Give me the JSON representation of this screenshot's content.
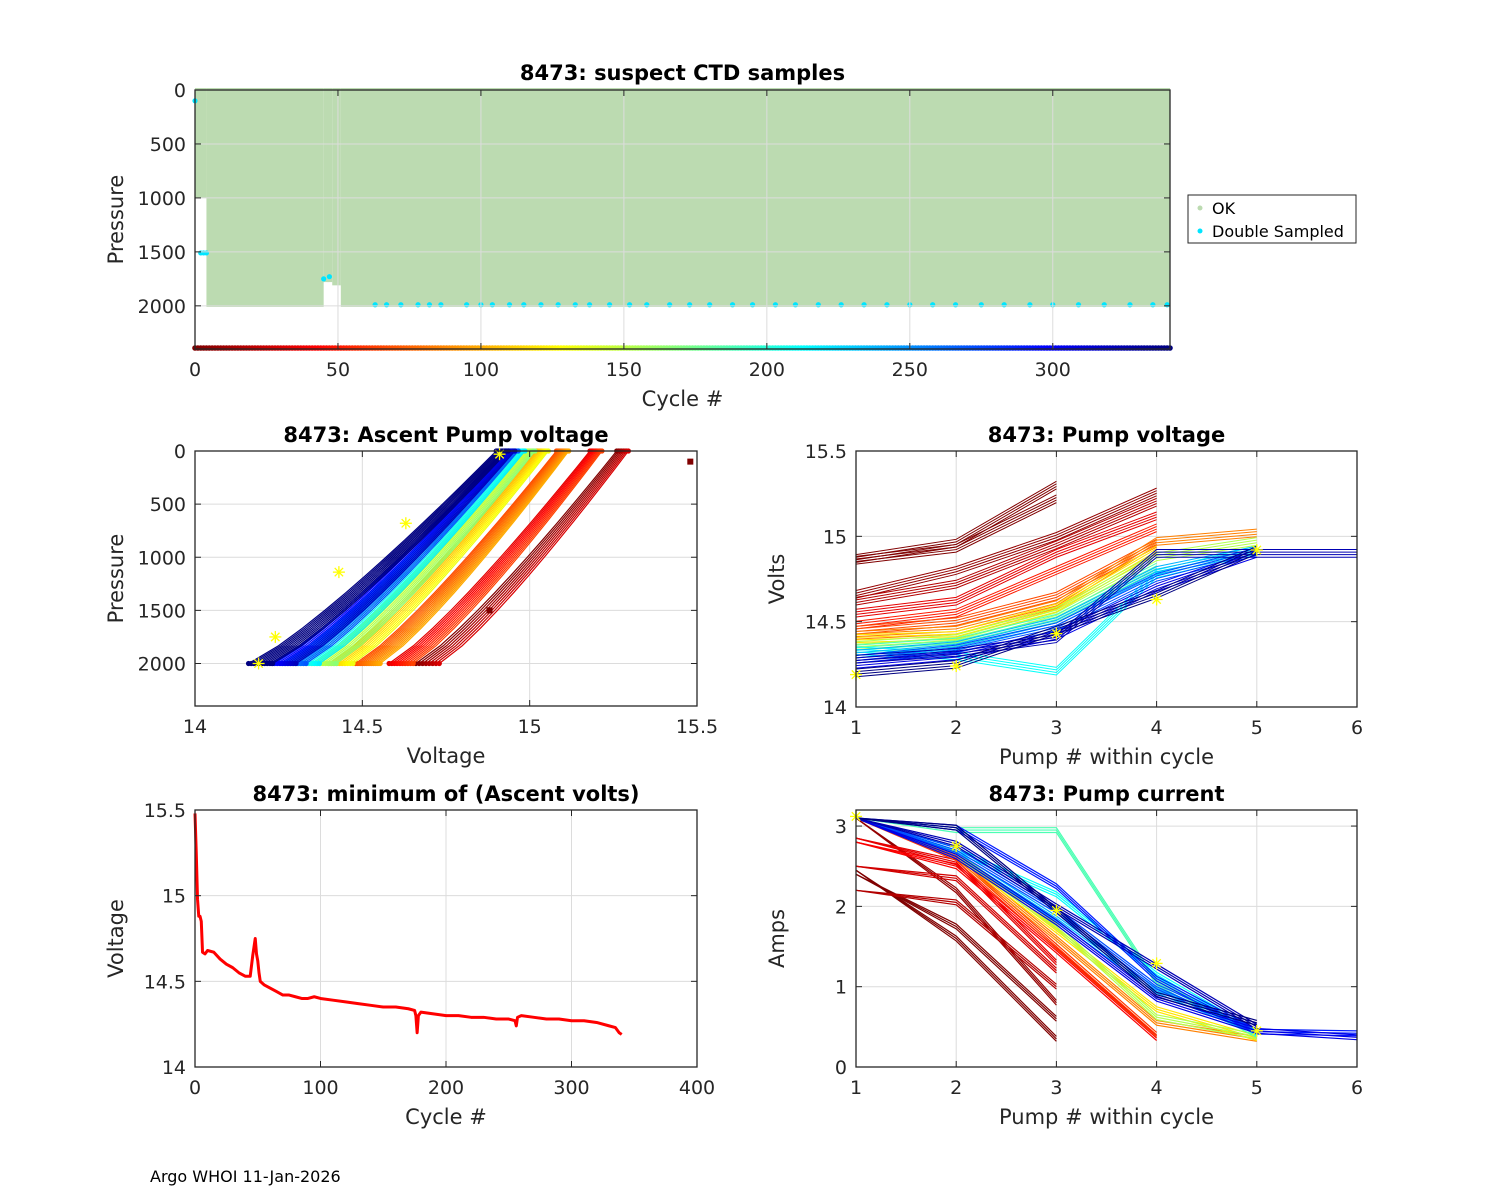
{
  "footer": "Argo WHOI 11-Jan-2026",
  "chart_data": [
    {
      "id": "suspect",
      "type": "scatter",
      "title": "8473: suspect CTD samples",
      "xlabel": "Cycle #",
      "ylabel": "Pressure",
      "xlim": [
        0,
        341
      ],
      "ylim": [
        0,
        2400
      ],
      "y_reversed": true,
      "xticks": [
        0,
        50,
        100,
        150,
        200,
        250,
        300
      ],
      "yticks": [
        0,
        500,
        1000,
        1500,
        2000
      ],
      "grid": true,
      "legend": {
        "placement": "outside-right",
        "entries": [
          {
            "label": "OK",
            "color": "#bcdbb1"
          },
          {
            "label": "Double Sampled",
            "color": "#00e5ff"
          }
        ]
      },
      "ok_profiles": [
        {
          "cycle_start": 0,
          "cycle_end": 4,
          "max_pressure": 1000
        },
        {
          "cycle_start": 4,
          "cycle_end": 45,
          "max_pressure": 2010
        },
        {
          "cycle_start": 45,
          "cycle_end": 48,
          "max_pressure": 1780
        },
        {
          "cycle_start": 48,
          "cycle_end": 51,
          "max_pressure": 1810
        },
        {
          "cycle_start": 51,
          "cycle_end": 341,
          "max_pressure": 2010
        }
      ],
      "double_sampled": [
        {
          "cycle": 0,
          "pressure": 100
        },
        {
          "cycle": 2,
          "pressure": 1510
        },
        {
          "cycle": 3,
          "pressure": 1510
        },
        {
          "cycle": 4,
          "pressure": 1510
        },
        {
          "cycle": 45,
          "pressure": 1750
        },
        {
          "cycle": 47,
          "pressure": 1730
        },
        {
          "cycle": 63,
          "pressure": 1990
        },
        {
          "cycle": 67,
          "pressure": 1990
        },
        {
          "cycle": 72,
          "pressure": 1990
        },
        {
          "cycle": 78,
          "pressure": 1990
        },
        {
          "cycle": 82,
          "pressure": 1990
        },
        {
          "cycle": 86,
          "pressure": 1990
        },
        {
          "cycle": 95,
          "pressure": 1990
        },
        {
          "cycle": 100,
          "pressure": 1990
        },
        {
          "cycle": 104,
          "pressure": 1990
        },
        {
          "cycle": 110,
          "pressure": 1990
        },
        {
          "cycle": 115,
          "pressure": 1990
        },
        {
          "cycle": 121,
          "pressure": 1990
        },
        {
          "cycle": 127,
          "pressure": 1990
        },
        {
          "cycle": 133,
          "pressure": 1990
        },
        {
          "cycle": 138,
          "pressure": 1990
        },
        {
          "cycle": 145,
          "pressure": 1990
        },
        {
          "cycle": 152,
          "pressure": 1990
        },
        {
          "cycle": 158,
          "pressure": 1990
        },
        {
          "cycle": 166,
          "pressure": 1990
        },
        {
          "cycle": 173,
          "pressure": 1990
        },
        {
          "cycle": 180,
          "pressure": 1990
        },
        {
          "cycle": 188,
          "pressure": 1990
        },
        {
          "cycle": 195,
          "pressure": 1990
        },
        {
          "cycle": 203,
          "pressure": 1990
        },
        {
          "cycle": 210,
          "pressure": 1990
        },
        {
          "cycle": 218,
          "pressure": 1990
        },
        {
          "cycle": 226,
          "pressure": 1990
        },
        {
          "cycle": 234,
          "pressure": 1990
        },
        {
          "cycle": 242,
          "pressure": 1990
        },
        {
          "cycle": 250,
          "pressure": 1990
        },
        {
          "cycle": 258,
          "pressure": 1990
        },
        {
          "cycle": 266,
          "pressure": 1990
        },
        {
          "cycle": 275,
          "pressure": 1990
        },
        {
          "cycle": 283,
          "pressure": 1990
        },
        {
          "cycle": 292,
          "pressure": 1990
        },
        {
          "cycle": 300,
          "pressure": 1990
        },
        {
          "cycle": 309,
          "pressure": 1990
        },
        {
          "cycle": 318,
          "pressure": 1990
        },
        {
          "cycle": 327,
          "pressure": 1990
        },
        {
          "cycle": 335,
          "pressure": 1990
        },
        {
          "cycle": 340,
          "pressure": 1990
        }
      ],
      "cycle_colorbar": {
        "from_cycle": 0,
        "to_cycle": 341,
        "colormap": "jet-reversed",
        "pressure": 2400
      }
    },
    {
      "id": "ascent",
      "type": "line",
      "title": "8473: Ascent Pump voltage",
      "xlabel": "Voltage",
      "ylabel": "Pressure",
      "xlim": [
        14,
        15.5
      ],
      "ylim": [
        0,
        2400
      ],
      "y_reversed": true,
      "xticks": [
        14,
        14.5,
        15,
        15.5
      ],
      "yticks": [
        0,
        500,
        1000,
        1500,
        2000
      ],
      "grid": true,
      "series_groups": [
        {
          "cycles": "0-10",
          "color_frac": 0.0,
          "v_bottom": 14.7,
          "v_top": 15.28,
          "count": 8
        },
        {
          "cycles": "10-40",
          "color_frac": 0.1,
          "v_bottom": 14.62,
          "v_top": 15.2,
          "count": 10
        },
        {
          "cycles": "40-80",
          "color_frac": 0.2,
          "v_bottom": 14.52,
          "v_top": 15.1,
          "count": 12
        },
        {
          "cycles": "80-110",
          "color_frac": 0.3,
          "v_bottom": 14.44,
          "v_top": 15.04,
          "count": 10
        },
        {
          "cycles": "110-150",
          "color_frac": 0.4,
          "v_bottom": 14.39,
          "v_top": 15.0,
          "count": 10
        },
        {
          "cycles": "150-200",
          "color_frac": 0.55,
          "v_bottom": 14.34,
          "v_top": 14.97,
          "count": 10
        },
        {
          "cycles": "200-250",
          "color_frac": 0.7,
          "v_bottom": 14.3,
          "v_top": 14.95,
          "count": 10
        },
        {
          "cycles": "250-300",
          "color_frac": 0.85,
          "v_bottom": 14.27,
          "v_top": 14.94,
          "count": 10
        },
        {
          "cycles": "300-341",
          "color_frac": 1.0,
          "v_bottom": 14.2,
          "v_top": 14.92,
          "count": 10
        }
      ],
      "highlight_stars": [
        {
          "voltage": 14.19,
          "pressure": 2000
        },
        {
          "voltage": 14.24,
          "pressure": 1750
        },
        {
          "voltage": 14.43,
          "pressure": 1140
        },
        {
          "voltage": 14.63,
          "pressure": 680
        },
        {
          "voltage": 14.91,
          "pressure": 30
        }
      ],
      "outliers": [
        {
          "voltage": 15.48,
          "pressure": 100
        },
        {
          "voltage": 14.88,
          "pressure": 1500
        }
      ]
    },
    {
      "id": "pumpvolt",
      "type": "line",
      "title": "8473: Pump voltage",
      "xlabel": "Pump # within cycle",
      "ylabel": "Volts",
      "xlim": [
        1,
        6
      ],
      "ylim": [
        14,
        15.5
      ],
      "xticks": [
        1,
        2,
        3,
        4,
        5,
        6
      ],
      "yticks": [
        14,
        14.5,
        15,
        15.5
      ],
      "grid": true,
      "series_groups": [
        {
          "color_frac": 0.0,
          "values": [
            14.87,
            14.96,
            15.3
          ]
        },
        {
          "color_frac": 0.0,
          "values": [
            14.86,
            14.93,
            15.22
          ]
        },
        {
          "color_frac": 0.02,
          "values": [
            14.66,
            14.8,
            15.0,
            15.26
          ]
        },
        {
          "color_frac": 0.05,
          "values": [
            14.62,
            14.72,
            14.95,
            15.2
          ]
        },
        {
          "color_frac": 0.1,
          "values": [
            14.55,
            14.62,
            14.9,
            15.12
          ]
        },
        {
          "color_frac": 0.15,
          "values": [
            14.48,
            14.55,
            14.8,
            15.05
          ]
        },
        {
          "color_frac": 0.2,
          "values": [
            14.45,
            14.5,
            14.65,
            14.96
          ]
        },
        {
          "color_frac": 0.25,
          "values": [
            14.42,
            14.45,
            14.6,
            14.97,
            15.02
          ]
        },
        {
          "color_frac": 0.35,
          "values": [
            14.4,
            14.42,
            14.58,
            14.92
          ]
        },
        {
          "color_frac": 0.45,
          "values": [
            14.36,
            14.4,
            14.56,
            14.88,
            14.97
          ]
        },
        {
          "color_frac": 0.55,
          "values": [
            14.34,
            14.38,
            14.52,
            14.82
          ]
        },
        {
          "color_frac": 0.62,
          "values": [
            14.33,
            14.3,
            14.21,
            14.78,
            14.92
          ]
        },
        {
          "color_frac": 0.7,
          "values": [
            14.31,
            14.36,
            14.5,
            14.8,
            14.92
          ]
        },
        {
          "color_frac": 0.8,
          "values": [
            14.28,
            14.34,
            14.47,
            14.76,
            14.91
          ]
        },
        {
          "color_frac": 0.9,
          "values": [
            14.25,
            14.3,
            14.42,
            14.7,
            14.9
          ]
        },
        {
          "color_frac": 0.95,
          "values": [
            14.28,
            14.32,
            14.4,
            14.9,
            14.9,
            14.9
          ]
        },
        {
          "color_frac": 1.0,
          "values": [
            14.2,
            14.25,
            14.45,
            14.66,
            14.92
          ]
        }
      ],
      "highlight_stars": [
        {
          "pump": 1,
          "volts": 14.19
        },
        {
          "pump": 2,
          "volts": 14.24
        },
        {
          "pump": 3,
          "volts": 14.43
        },
        {
          "pump": 4,
          "volts": 14.63
        },
        {
          "pump": 5,
          "volts": 14.92
        }
      ]
    },
    {
      "id": "minvolts",
      "type": "line",
      "title": "8473: minimum of (Ascent volts)",
      "xlabel": "Cycle #",
      "ylabel": "Voltage",
      "xlim": [
        0,
        400
      ],
      "ylim": [
        14,
        15.5
      ],
      "xticks": [
        0,
        100,
        200,
        300,
        400
      ],
      "yticks": [
        14,
        14.5,
        15,
        15.5
      ],
      "grid": true,
      "color": "#ff0000",
      "x": [
        0,
        1,
        2,
        3,
        4,
        5,
        6,
        8,
        10,
        15,
        20,
        25,
        30,
        35,
        40,
        44,
        46,
        47,
        48,
        49,
        50,
        51,
        52,
        55,
        60,
        65,
        70,
        75,
        80,
        85,
        90,
        95,
        100,
        110,
        120,
        130,
        140,
        150,
        160,
        170,
        175,
        176,
        177,
        178,
        180,
        190,
        200,
        210,
        220,
        230,
        240,
        250,
        255,
        256,
        257,
        260,
        270,
        280,
        290,
        300,
        310,
        320,
        330,
        335,
        338,
        340
      ],
      "y": [
        15.48,
        15.25,
        14.98,
        14.88,
        14.88,
        14.85,
        14.67,
        14.66,
        14.68,
        14.67,
        14.63,
        14.6,
        14.58,
        14.55,
        14.53,
        14.53,
        14.65,
        14.7,
        14.75,
        14.66,
        14.62,
        14.55,
        14.5,
        14.48,
        14.46,
        14.44,
        14.42,
        14.42,
        14.41,
        14.4,
        14.4,
        14.41,
        14.4,
        14.39,
        14.38,
        14.37,
        14.36,
        14.35,
        14.35,
        14.34,
        14.33,
        14.3,
        14.2,
        14.3,
        14.32,
        14.31,
        14.3,
        14.3,
        14.29,
        14.29,
        14.28,
        14.28,
        14.27,
        14.24,
        14.29,
        14.3,
        14.29,
        14.28,
        14.28,
        14.27,
        14.27,
        14.26,
        14.24,
        14.23,
        14.2,
        14.19
      ]
    },
    {
      "id": "pumpcurrent",
      "type": "line",
      "title": "8473: Pump current",
      "xlabel": "Pump # within cycle",
      "ylabel": "Amps",
      "xlim": [
        1,
        6
      ],
      "ylim": [
        0,
        3.2
      ],
      "xticks": [
        1,
        2,
        3,
        4,
        5,
        6
      ],
      "yticks": [
        0,
        1,
        2,
        3
      ],
      "grid": true,
      "series_groups": [
        {
          "color_frac": 0.0,
          "values": [
            2.45,
            1.6,
            0.35
          ]
        },
        {
          "color_frac": 0.0,
          "values": [
            2.4,
            1.75,
            0.6
          ]
        },
        {
          "color_frac": 0.02,
          "values": [
            3.1,
            2.2,
            0.8
          ]
        },
        {
          "color_frac": 0.05,
          "values": [
            2.2,
            2.05,
            1.0
          ]
        },
        {
          "color_frac": 0.08,
          "values": [
            2.5,
            2.35,
            1.2
          ]
        },
        {
          "color_frac": 0.1,
          "values": [
            2.85,
            2.55,
            1.3
          ]
        },
        {
          "color_frac": 0.12,
          "values": [
            2.8,
            2.5,
            1.45,
            0.36
          ]
        },
        {
          "color_frac": 0.18,
          "values": [
            3.1,
            2.6,
            1.5,
            0.4
          ]
        },
        {
          "color_frac": 0.25,
          "values": [
            3.1,
            2.62,
            1.6,
            0.55,
            0.35
          ]
        },
        {
          "color_frac": 0.35,
          "values": [
            3.1,
            2.65,
            1.7,
            0.72,
            0.36
          ]
        },
        {
          "color_frac": 0.45,
          "values": [
            3.1,
            2.65,
            1.75,
            0.62,
            0.38
          ]
        },
        {
          "color_frac": 0.55,
          "values": [
            3.1,
            2.95,
            2.95,
            1.05,
            0.4
          ]
        },
        {
          "color_frac": 0.62,
          "values": [
            3.1,
            2.7,
            2.15,
            1.15,
            0.42
          ]
        },
        {
          "color_frac": 0.7,
          "values": [
            3.1,
            2.65,
            1.85,
            0.95,
            0.44
          ]
        },
        {
          "color_frac": 0.8,
          "values": [
            3.1,
            2.7,
            1.95,
            1.0,
            0.44
          ]
        },
        {
          "color_frac": 0.85,
          "values": [
            3.1,
            2.98,
            2.25,
            1.1,
            0.44,
            0.42
          ]
        },
        {
          "color_frac": 0.9,
          "values": [
            3.1,
            2.62,
            1.8,
            0.85,
            0.45,
            0.37
          ]
        },
        {
          "color_frac": 0.95,
          "values": [
            3.1,
            2.78,
            2.0,
            1.25,
            0.5
          ]
        },
        {
          "color_frac": 1.0,
          "values": [
            3.1,
            2.98,
            1.95,
            0.9,
            0.55
          ]
        }
      ],
      "highlight_stars": [
        {
          "pump": 1,
          "amps": 3.12
        },
        {
          "pump": 2,
          "amps": 2.75
        },
        {
          "pump": 3,
          "amps": 1.95
        },
        {
          "pump": 4,
          "amps": 1.29
        },
        {
          "pump": 5,
          "amps": 0.45
        }
      ]
    }
  ]
}
